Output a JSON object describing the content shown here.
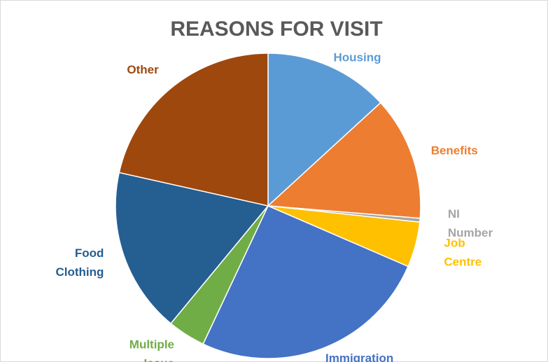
{
  "chart_data": {
    "type": "pie",
    "title": "REASONS FOR VISIT",
    "start_angle_deg": 0,
    "direction": "clockwise",
    "slices": [
      {
        "label_lines": [
          "Housing"
        ],
        "value": 13.2,
        "color": "#5b9bd5"
      },
      {
        "label_lines": [
          "Benefits"
        ],
        "value": 13.1,
        "color": "#ed7d31"
      },
      {
        "label_lines": [
          "NI",
          "Number"
        ],
        "value": 0.4,
        "color": "#a5a5a5"
      },
      {
        "label_lines": [
          "Job",
          "Centre"
        ],
        "value": 4.8,
        "color": "#ffc000"
      },
      {
        "label_lines": [
          "Immigration"
        ],
        "value": 25.5,
        "color": "#4472c4"
      },
      {
        "label_lines": [
          "Multiple",
          "Issue"
        ],
        "value": 4.0,
        "color": "#70ad47"
      },
      {
        "label_lines": [
          "Food",
          "Clothing"
        ],
        "value": 17.5,
        "color": "#255e91"
      },
      {
        "label_lines": [
          "Other"
        ],
        "value": 21.5,
        "color": "#9e480e"
      }
    ]
  }
}
